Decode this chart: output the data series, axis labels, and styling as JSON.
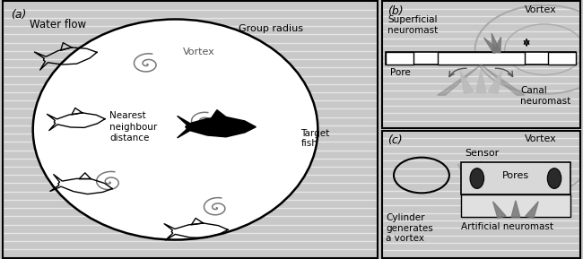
{
  "stripe_color": "#ffffff",
  "stripe_alpha": 0.55,
  "bg_color": "#c8c8c8",
  "ellipse_bg": "#ffffff",
  "panel_a_label": "(a)",
  "panel_b_label": "(b)",
  "panel_c_label": "(c)",
  "water_flow_text": "Water flow",
  "vortex_text": "Vortex",
  "group_radius_text": "Group radius",
  "nearest_neighbour_text": "Nearest\nneighbour\ndistance",
  "target_fish_text": "Target\nfish",
  "superficial_neuromast_text": "Superficial\nneuromast",
  "pore_text": "Pore",
  "canal_neuromast_text": "Canal\nneuromast",
  "vortex_b_text": "Vortex",
  "vortex_c_text": "Vortex",
  "sensor_text": "Sensor",
  "pores_text": "Pores",
  "cylinder_text": "Cylinder\ngenerates\na vortex",
  "artificial_neuromast_text": "Artificial neuromast",
  "vortex_color": "#aaaaaa",
  "fish_color": "#1a1a1a",
  "text_color": "#1a1a1a"
}
